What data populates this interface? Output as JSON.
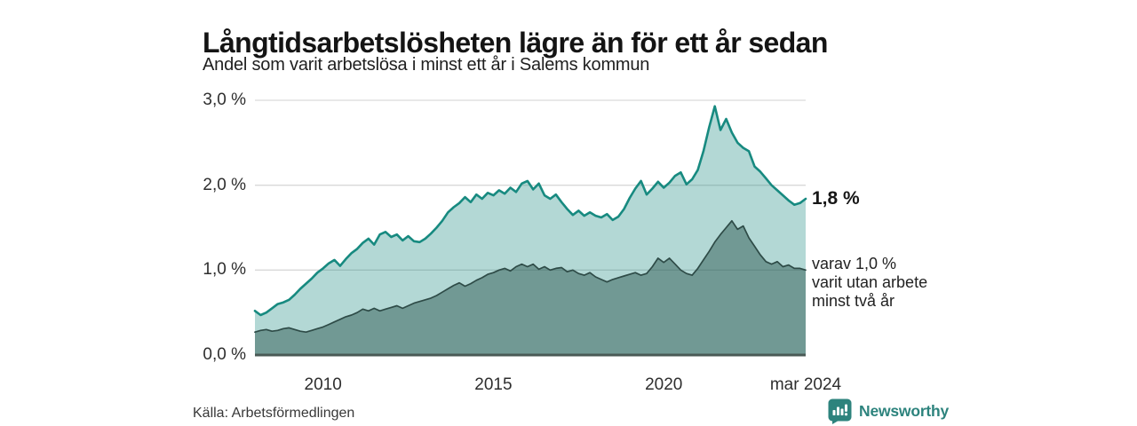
{
  "header": {
    "title": "Långtidsarbetslösheten lägre än för ett år sedan",
    "subtitle": "Andel som varit arbetslösa i minst ett år i Salems kommun"
  },
  "chart_data": {
    "type": "area",
    "title": "Långtidsarbetslösheten lägre än för ett år sedan",
    "subtitle": "Andel som varit arbetslösa i minst ett år i Salems kommun",
    "unit": "%",
    "x_start_year": 2008.0,
    "x_step_years": 0.166667,
    "ylim": [
      0,
      3.0
    ],
    "grid": true,
    "yticks": [
      {
        "value": 3.0,
        "label": "3,0 %"
      },
      {
        "value": 2.0,
        "label": "2,0 %"
      },
      {
        "value": 1.0,
        "label": "1,0 %"
      },
      {
        "value": 0.0,
        "label": "0,0 %"
      }
    ],
    "xticks": [
      {
        "t": 2010.0,
        "label": "2010"
      },
      {
        "t": 2015.0,
        "label": "2015"
      },
      {
        "t": 2020.0,
        "label": "2020"
      },
      {
        "t": 2024.167,
        "label": "mar 2024"
      }
    ],
    "series": [
      {
        "name": "Andel som varit arbetslösa i minst ett år",
        "line_color": "#178a80",
        "line_width": 2.6,
        "fill_color": "rgba(23,138,128,0.33)",
        "end_label": "1,8 %",
        "values": [
          0.52,
          0.47,
          0.5,
          0.55,
          0.6,
          0.62,
          0.65,
          0.71,
          0.78,
          0.84,
          0.9,
          0.97,
          1.02,
          1.08,
          1.12,
          1.05,
          1.13,
          1.2,
          1.25,
          1.32,
          1.37,
          1.3,
          1.42,
          1.45,
          1.39,
          1.42,
          1.35,
          1.4,
          1.34,
          1.33,
          1.37,
          1.43,
          1.5,
          1.58,
          1.68,
          1.74,
          1.79,
          1.86,
          1.8,
          1.89,
          1.84,
          1.91,
          1.88,
          1.94,
          1.9,
          1.97,
          1.92,
          2.02,
          2.05,
          1.95,
          2.02,
          1.88,
          1.84,
          1.89,
          1.8,
          1.72,
          1.65,
          1.7,
          1.64,
          1.68,
          1.64,
          1.62,
          1.66,
          1.59,
          1.63,
          1.72,
          1.85,
          1.96,
          2.05,
          1.89,
          1.96,
          2.04,
          1.97,
          2.03,
          2.11,
          2.15,
          2.01,
          2.07,
          2.18,
          2.4,
          2.68,
          2.93,
          2.65,
          2.78,
          2.62,
          2.5,
          2.44,
          2.4,
          2.22,
          2.16,
          2.08,
          2.0,
          1.94,
          1.88,
          1.82,
          1.77,
          1.79,
          1.84
        ]
      },
      {
        "name": "varav utan arbete minst två år",
        "line_color": "#2e4b47",
        "line_width": 1.7,
        "fill_color": "rgba(42,84,78,0.48)",
        "end_label": "varav 1,0 %",
        "values": [
          0.27,
          0.29,
          0.3,
          0.28,
          0.29,
          0.31,
          0.32,
          0.3,
          0.28,
          0.27,
          0.29,
          0.31,
          0.33,
          0.36,
          0.39,
          0.42,
          0.45,
          0.47,
          0.5,
          0.54,
          0.52,
          0.55,
          0.52,
          0.54,
          0.56,
          0.58,
          0.55,
          0.58,
          0.61,
          0.63,
          0.65,
          0.67,
          0.7,
          0.74,
          0.78,
          0.82,
          0.85,
          0.81,
          0.84,
          0.88,
          0.91,
          0.95,
          0.97,
          1.0,
          1.02,
          0.99,
          1.04,
          1.07,
          1.04,
          1.07,
          1.01,
          1.04,
          1.0,
          1.02,
          1.03,
          0.98,
          1.0,
          0.96,
          0.94,
          0.97,
          0.92,
          0.89,
          0.86,
          0.89,
          0.91,
          0.93,
          0.95,
          0.97,
          0.94,
          0.96,
          1.04,
          1.14,
          1.09,
          1.14,
          1.07,
          1.0,
          0.96,
          0.94,
          1.02,
          1.12,
          1.22,
          1.33,
          1.42,
          1.5,
          1.58,
          1.48,
          1.52,
          1.38,
          1.28,
          1.18,
          1.1,
          1.07,
          1.1,
          1.04,
          1.06,
          1.02,
          1.02,
          1.0
        ]
      }
    ],
    "colors": {
      "gridline": "#d9d9d9",
      "baseline_axis": "#4a5a56",
      "accent_teal": "#178a80"
    },
    "legend_position": "right-annotations"
  },
  "annotations": {
    "latest_value": "1,8 %",
    "secondary_note": "varav 1,0 %\nvarit utan arbete\nminst två år"
  },
  "footer": {
    "source": "Källa: Arbetsförmedlingen",
    "brand": "Newsworthy",
    "brand_color": "#2d837d"
  }
}
